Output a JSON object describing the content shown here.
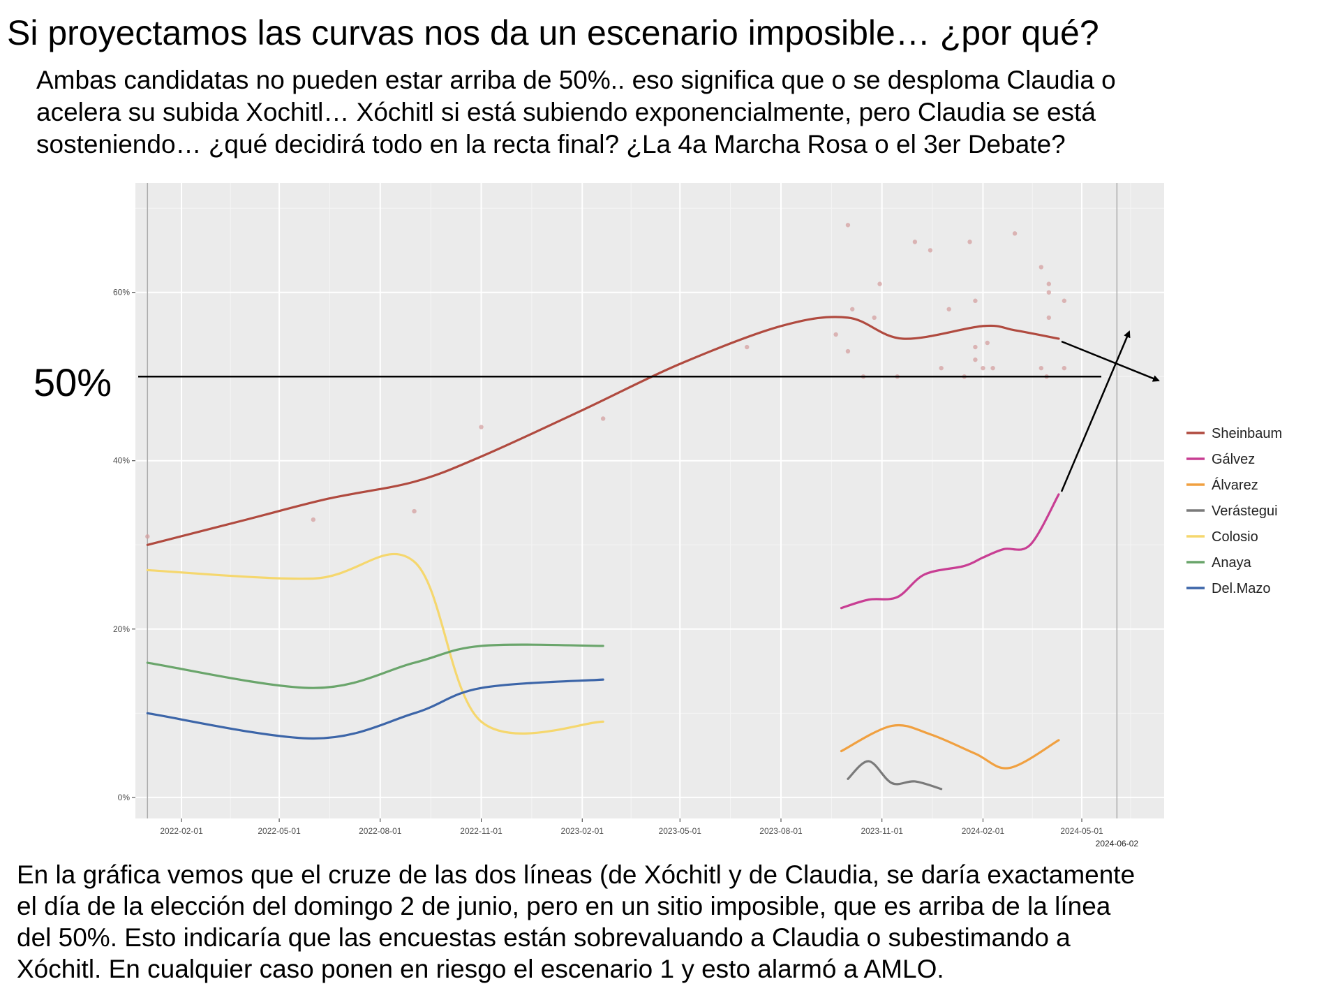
{
  "header": {
    "title": "Si proyectamos las curvas nos da un escenario imposible… ¿por qué?",
    "intro_lines": [
      "Ambas candidatas no pueden estar arriba de 50%.. eso significa que o se desploma Claudia o",
      "acelera su subida Xochitl… Xóchitl si está subiendo exponencialmente, pero Claudia se está",
      "sosteniendo… ¿qué decidirá todo en la recta final? ¿La 4a Marcha Rosa o el 3er Debate?"
    ]
  },
  "annotation": {
    "fifty_label": "50%",
    "election_date_label": "2024-06-02"
  },
  "footer": {
    "lines": [
      "En la gráfica vemos que el cruze de las dos líneas (de Xóchitl y de Claudia, se daría exactamente",
      "el día de la elección del domingo 2 de junio, pero en un sitio imposible, que es arriba de la línea",
      "del 50%. Esto indicaría que las encuestas están sobrevaluando a Claudia o subestimando a",
      "Xóchitl. En cualquier caso ponen en riesgo el escenario 1 y esto alarmó a AMLO."
    ]
  },
  "chart_data": {
    "type": "line",
    "title": "",
    "xlabel": "",
    "ylabel": "",
    "x_ticks": [
      "2022-02-01",
      "2022-05-01",
      "2022-08-01",
      "2022-11-01",
      "2023-02-01",
      "2023-05-01",
      "2023-08-01",
      "2023-11-01",
      "2024-02-01",
      "2024-05-01"
    ],
    "y_ticks": [
      "0%",
      "20%",
      "40%",
      "60%"
    ],
    "xlim": [
      "2021-12-21",
      "2024-07-15"
    ],
    "ylim": [
      -2.5,
      73
    ],
    "reference_line": {
      "y": 50,
      "label": "50%"
    },
    "election_date": "2024-06-02",
    "grid": true,
    "legend_position": "right",
    "colors": {
      "Sheinbaum": "#b04a3f",
      "Gálvez": "#c83e93",
      "Álvarez": "#f0a040",
      "Verástegui": "#7a7a7a",
      "Colosio": "#f5d76e",
      "Anaya": "#6aa56b",
      "Del.Mazo": "#3c65a8"
    },
    "series": [
      {
        "name": "Sheinbaum",
        "points": [
          [
            "2022-01-01",
            30
          ],
          [
            "2022-04-01",
            33
          ],
          [
            "2022-06-15",
            35.5
          ],
          [
            "2022-09-01",
            37.5
          ],
          [
            "2022-11-01",
            40.5
          ],
          [
            "2023-02-01",
            46
          ],
          [
            "2023-05-01",
            51.5
          ],
          [
            "2023-08-01",
            56
          ],
          [
            "2023-10-01",
            57
          ],
          [
            "2023-11-20",
            54.5
          ],
          [
            "2024-02-01",
            56
          ],
          [
            "2024-03-01",
            55.5
          ],
          [
            "2024-04-10",
            54.5
          ]
        ]
      },
      {
        "name": "Gálvez",
        "points": [
          [
            "2023-09-25",
            22.5
          ],
          [
            "2023-10-20",
            23.5
          ],
          [
            "2023-11-15",
            23.8
          ],
          [
            "2023-12-10",
            26.5
          ],
          [
            "2024-01-15",
            27.5
          ],
          [
            "2024-02-01",
            28.5
          ],
          [
            "2024-02-20",
            29.5
          ],
          [
            "2024-03-15",
            30
          ],
          [
            "2024-04-10",
            36
          ]
        ]
      },
      {
        "name": "Álvarez",
        "points": [
          [
            "2023-09-25",
            5.5
          ],
          [
            "2023-11-10",
            8.5
          ],
          [
            "2023-12-15",
            7.5
          ],
          [
            "2024-01-25",
            5.2
          ],
          [
            "2024-02-25",
            3.5
          ],
          [
            "2024-04-10",
            6.8
          ]
        ]
      },
      {
        "name": "Verástegui",
        "points": [
          [
            "2023-10-01",
            2.2
          ],
          [
            "2023-10-20",
            4.3
          ],
          [
            "2023-11-10",
            1.7
          ],
          [
            "2023-12-01",
            1.9
          ],
          [
            "2023-12-25",
            1.0
          ]
        ]
      },
      {
        "name": "Colosio",
        "points": [
          [
            "2022-01-01",
            27
          ],
          [
            "2022-06-01",
            26
          ],
          [
            "2022-09-01",
            28
          ],
          [
            "2022-11-01",
            9
          ],
          [
            "2023-02-20",
            9
          ]
        ]
      },
      {
        "name": "Anaya",
        "points": [
          [
            "2022-01-01",
            16
          ],
          [
            "2022-06-01",
            13
          ],
          [
            "2022-09-01",
            16
          ],
          [
            "2022-11-01",
            18
          ],
          [
            "2023-02-20",
            18
          ]
        ]
      },
      {
        "name": "Del.Mazo",
        "points": [
          [
            "2022-01-01",
            10
          ],
          [
            "2022-06-01",
            7
          ],
          [
            "2022-09-01",
            10
          ],
          [
            "2022-11-01",
            13
          ],
          [
            "2023-02-20",
            14
          ]
        ]
      }
    ],
    "scatter": {
      "Sheinbaum": [
        [
          "2022-01-01",
          31
        ],
        [
          "2022-06-01",
          33
        ],
        [
          "2022-09-01",
          34
        ],
        [
          "2022-11-01",
          44
        ],
        [
          "2023-02-20",
          45
        ],
        [
          "2023-07-01",
          53.5
        ],
        [
          "2023-09-20",
          55
        ],
        [
          "2023-10-01",
          68
        ],
        [
          "2023-10-05",
          58
        ],
        [
          "2023-10-01",
          53
        ],
        [
          "2023-10-15",
          50
        ],
        [
          "2023-10-25",
          57
        ],
        [
          "2023-10-30",
          61
        ],
        [
          "2023-11-15",
          50
        ],
        [
          "2023-12-01",
          66
        ],
        [
          "2023-12-15",
          65
        ],
        [
          "2023-12-25",
          51
        ],
        [
          "2024-01-01",
          58
        ],
        [
          "2024-01-15",
          50
        ],
        [
          "2024-01-20",
          66
        ],
        [
          "2024-01-25",
          59
        ],
        [
          "2024-01-25",
          53.5
        ],
        [
          "2024-01-25",
          52
        ],
        [
          "2024-02-01",
          51
        ],
        [
          "2024-02-05",
          54
        ],
        [
          "2024-02-10",
          51
        ],
        [
          "2024-03-01",
          67
        ],
        [
          "2024-03-25",
          63
        ],
        [
          "2024-03-25",
          51
        ],
        [
          "2024-03-30",
          50
        ],
        [
          "2024-04-01",
          61
        ],
        [
          "2024-04-01",
          60
        ],
        [
          "2024-04-01",
          57
        ],
        [
          "2024-04-15",
          51
        ],
        [
          "2024-04-15",
          59
        ]
      ]
    }
  }
}
